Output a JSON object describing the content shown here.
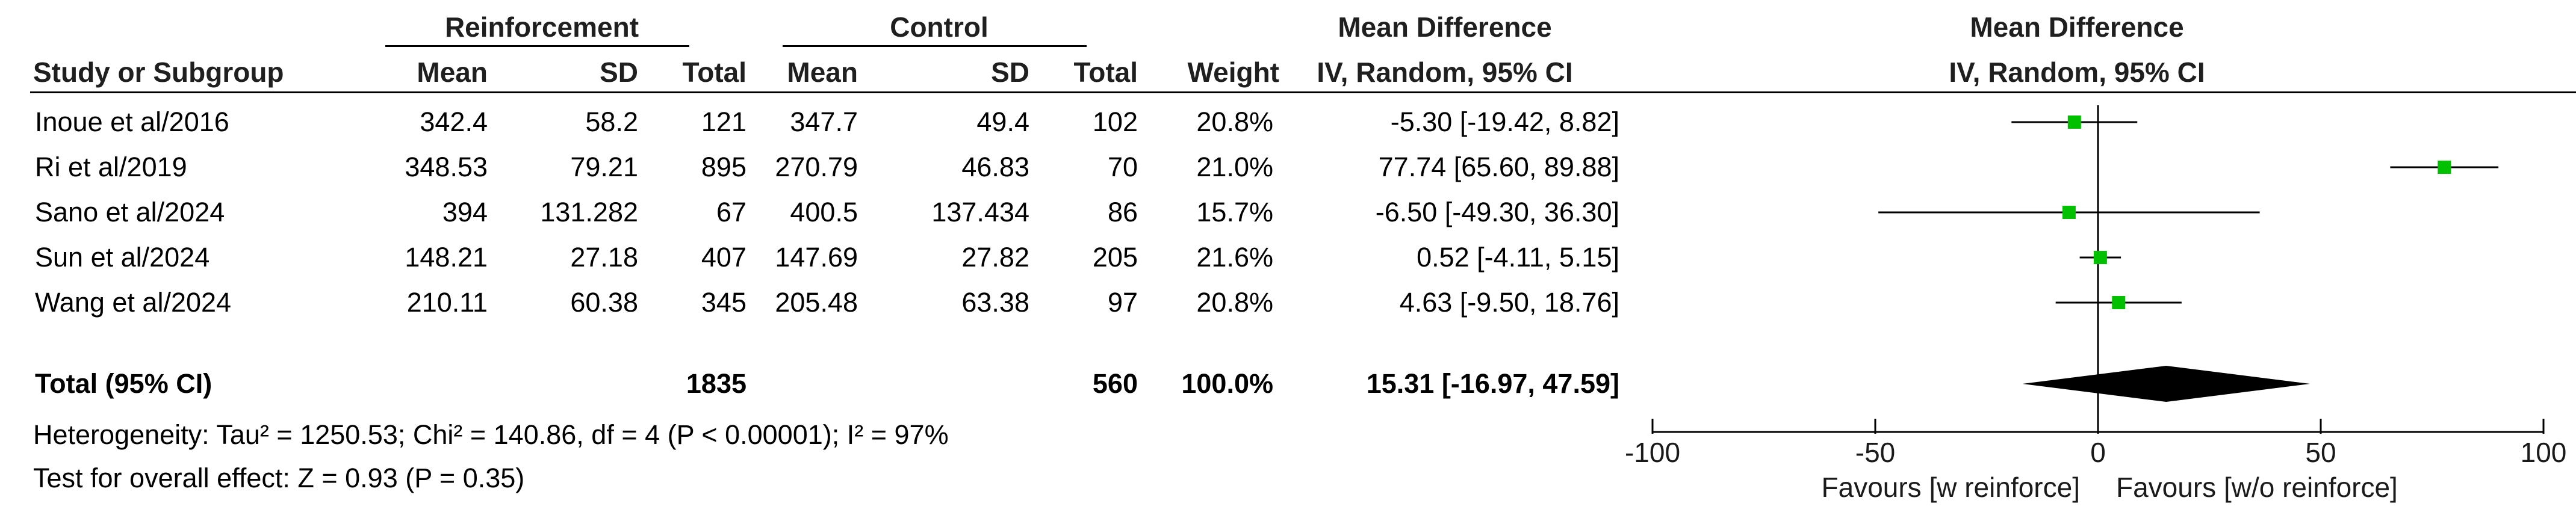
{
  "table": {
    "groups": [
      "Reinforcement",
      "Control"
    ],
    "columns": [
      "Study or Subgroup",
      "Mean",
      "SD",
      "Total",
      "Mean",
      "SD",
      "Total",
      "Weight",
      "IV, Random, 95% CI"
    ],
    "effect_header_top": "Mean Difference",
    "effect_header_bottom": "IV, Random, 95% CI",
    "rows": [
      {
        "study": "Inoue et al/2016",
        "r_mean": "342.4",
        "r_sd": "58.2",
        "r_total": "121",
        "c_mean": "347.7",
        "c_sd": "49.4",
        "c_total": "102",
        "weight": "20.8%",
        "ci": "-5.30 [-19.42, 8.82]"
      },
      {
        "study": "Ri et al/2019",
        "r_mean": "348.53",
        "r_sd": "79.21",
        "r_total": "895",
        "c_mean": "270.79",
        "c_sd": "46.83",
        "c_total": "70",
        "weight": "21.0%",
        "ci": "77.74 [65.60, 89.88]"
      },
      {
        "study": "Sano et al/2024",
        "r_mean": "394",
        "r_sd": "131.282",
        "r_total": "67",
        "c_mean": "400.5",
        "c_sd": "137.434",
        "c_total": "86",
        "weight": "15.7%",
        "ci": "-6.50 [-49.30, 36.30]"
      },
      {
        "study": "Sun et al/2024",
        "r_mean": "148.21",
        "r_sd": "27.18",
        "r_total": "407",
        "c_mean": "147.69",
        "c_sd": "27.82",
        "c_total": "205",
        "weight": "21.6%",
        "ci": "0.52 [-4.11, 5.15]"
      },
      {
        "study": "Wang et al/2024",
        "r_mean": "210.11",
        "r_sd": "60.38",
        "r_total": "345",
        "c_mean": "205.48",
        "c_sd": "63.38",
        "c_total": "97",
        "weight": "20.8%",
        "ci": "4.63 [-9.50, 18.76]"
      }
    ],
    "total": {
      "label": "Total (95% CI)",
      "r_total": "1835",
      "c_total": "560",
      "weight": "100.0%",
      "ci": "15.31 [-16.97, 47.59]"
    },
    "heterogeneity": "Heterogeneity: Tau² = 1250.53; Chi² = 140.86, df = 4 (P < 0.00001); I² = 97%",
    "overall_effect": "Test for overall effect: Z = 0.93 (P = 0.35)"
  },
  "chart_data": {
    "type": "forest",
    "title": "Mean Difference",
    "subtitle": "IV, Random, 95% CI",
    "xlim": [
      -100,
      100
    ],
    "ticks": [
      -100,
      -50,
      0,
      50,
      100
    ],
    "tick_labels": [
      "-100",
      "-50",
      "0",
      "50",
      "100"
    ],
    "xlabel_left": "Favours [w reinforce]",
    "xlabel_right": "Favours [w/o reinforce]",
    "studies": [
      {
        "name": "Inoue et al/2016",
        "md": -5.3,
        "lower": -19.42,
        "upper": 8.82,
        "weight": 20.8
      },
      {
        "name": "Ri et al/2019",
        "md": 77.74,
        "lower": 65.6,
        "upper": 89.88,
        "weight": 21.0
      },
      {
        "name": "Sano et al/2024",
        "md": -6.5,
        "lower": -49.3,
        "upper": 36.3,
        "weight": 15.7
      },
      {
        "name": "Sun et al/2024",
        "md": 0.52,
        "lower": -4.11,
        "upper": 5.15,
        "weight": 21.6
      },
      {
        "name": "Wang et al/2024",
        "md": 4.63,
        "lower": -9.5,
        "upper": 18.76,
        "weight": 20.8
      }
    ],
    "pooled": {
      "md": 15.31,
      "lower": -16.97,
      "upper": 47.59
    },
    "colors": {
      "point": "#00c000",
      "diamond": "#000000"
    }
  }
}
